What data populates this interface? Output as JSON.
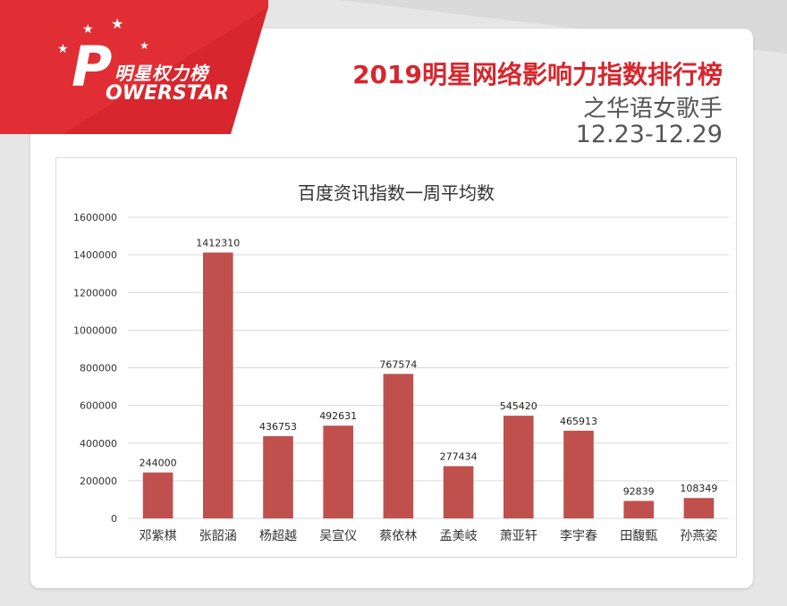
{
  "logo": {
    "brand_cn": "明星权力榜",
    "brand_en": "OWERSTAR",
    "brand_initial": "P"
  },
  "header": {
    "title": "2019明星网络影响力指数排行榜",
    "subtitle": "之华语女歌手",
    "date_range": "12.23-12.29"
  },
  "colors": {
    "accent": "#d7262d",
    "bar": "#c0504d",
    "grid": "#d9d9d9"
  },
  "chart_data": {
    "type": "bar",
    "title": "百度资讯指数一周平均数",
    "categories": [
      "邓紫棋",
      "张韶涵",
      "杨超越",
      "吴宣仪",
      "蔡依林",
      "孟美岐",
      "萧亚轩",
      "李宇春",
      "田馥甄",
      "孙燕姿"
    ],
    "values": [
      244000,
      1412310,
      436753,
      492631,
      767574,
      277434,
      545420,
      465913,
      92839,
      108349
    ],
    "ylim": [
      0,
      1600000
    ],
    "yticks": [
      0,
      200000,
      400000,
      600000,
      800000,
      1000000,
      1200000,
      1400000,
      1600000
    ],
    "grid": true,
    "data_labels": true
  }
}
